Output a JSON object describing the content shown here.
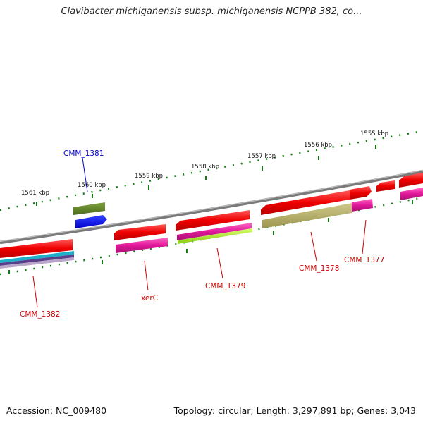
{
  "title": "Clavibacter michiganensis subsp. michiganensis NCPPB 382, co...",
  "footer": {
    "accession": "Accession: NC_009480",
    "summary": "Topology: circular; Length: 3,297,891 bp; Genes: 3,043"
  },
  "scale_labels": [
    "1561 kbp",
    "1560 kbp",
    "1559 kbp",
    "1558 kbp",
    "1557 kbp",
    "1556 kbp",
    "1555 kbp"
  ],
  "gene_labels": [
    {
      "id": "cmm1381",
      "text": "CMM_1381",
      "color": "#0000cc"
    },
    {
      "id": "xerc",
      "text": "xerC",
      "color": "#cc0000"
    },
    {
      "id": "cmm1379",
      "text": "CMM_1379",
      "color": "#cc0000"
    },
    {
      "id": "cmm1378",
      "text": "CMM_1378",
      "color": "#cc0000"
    },
    {
      "id": "cmm1377",
      "text": "CMM_1377",
      "color": "#cc0000"
    },
    {
      "id": "cmm1382",
      "text": "CMM_1382",
      "color": "#cc0000"
    }
  ],
  "colors": {
    "backbone": "#888888",
    "cds": "#ee0000",
    "misc": "#e0189a",
    "ticks": "#117a11"
  }
}
